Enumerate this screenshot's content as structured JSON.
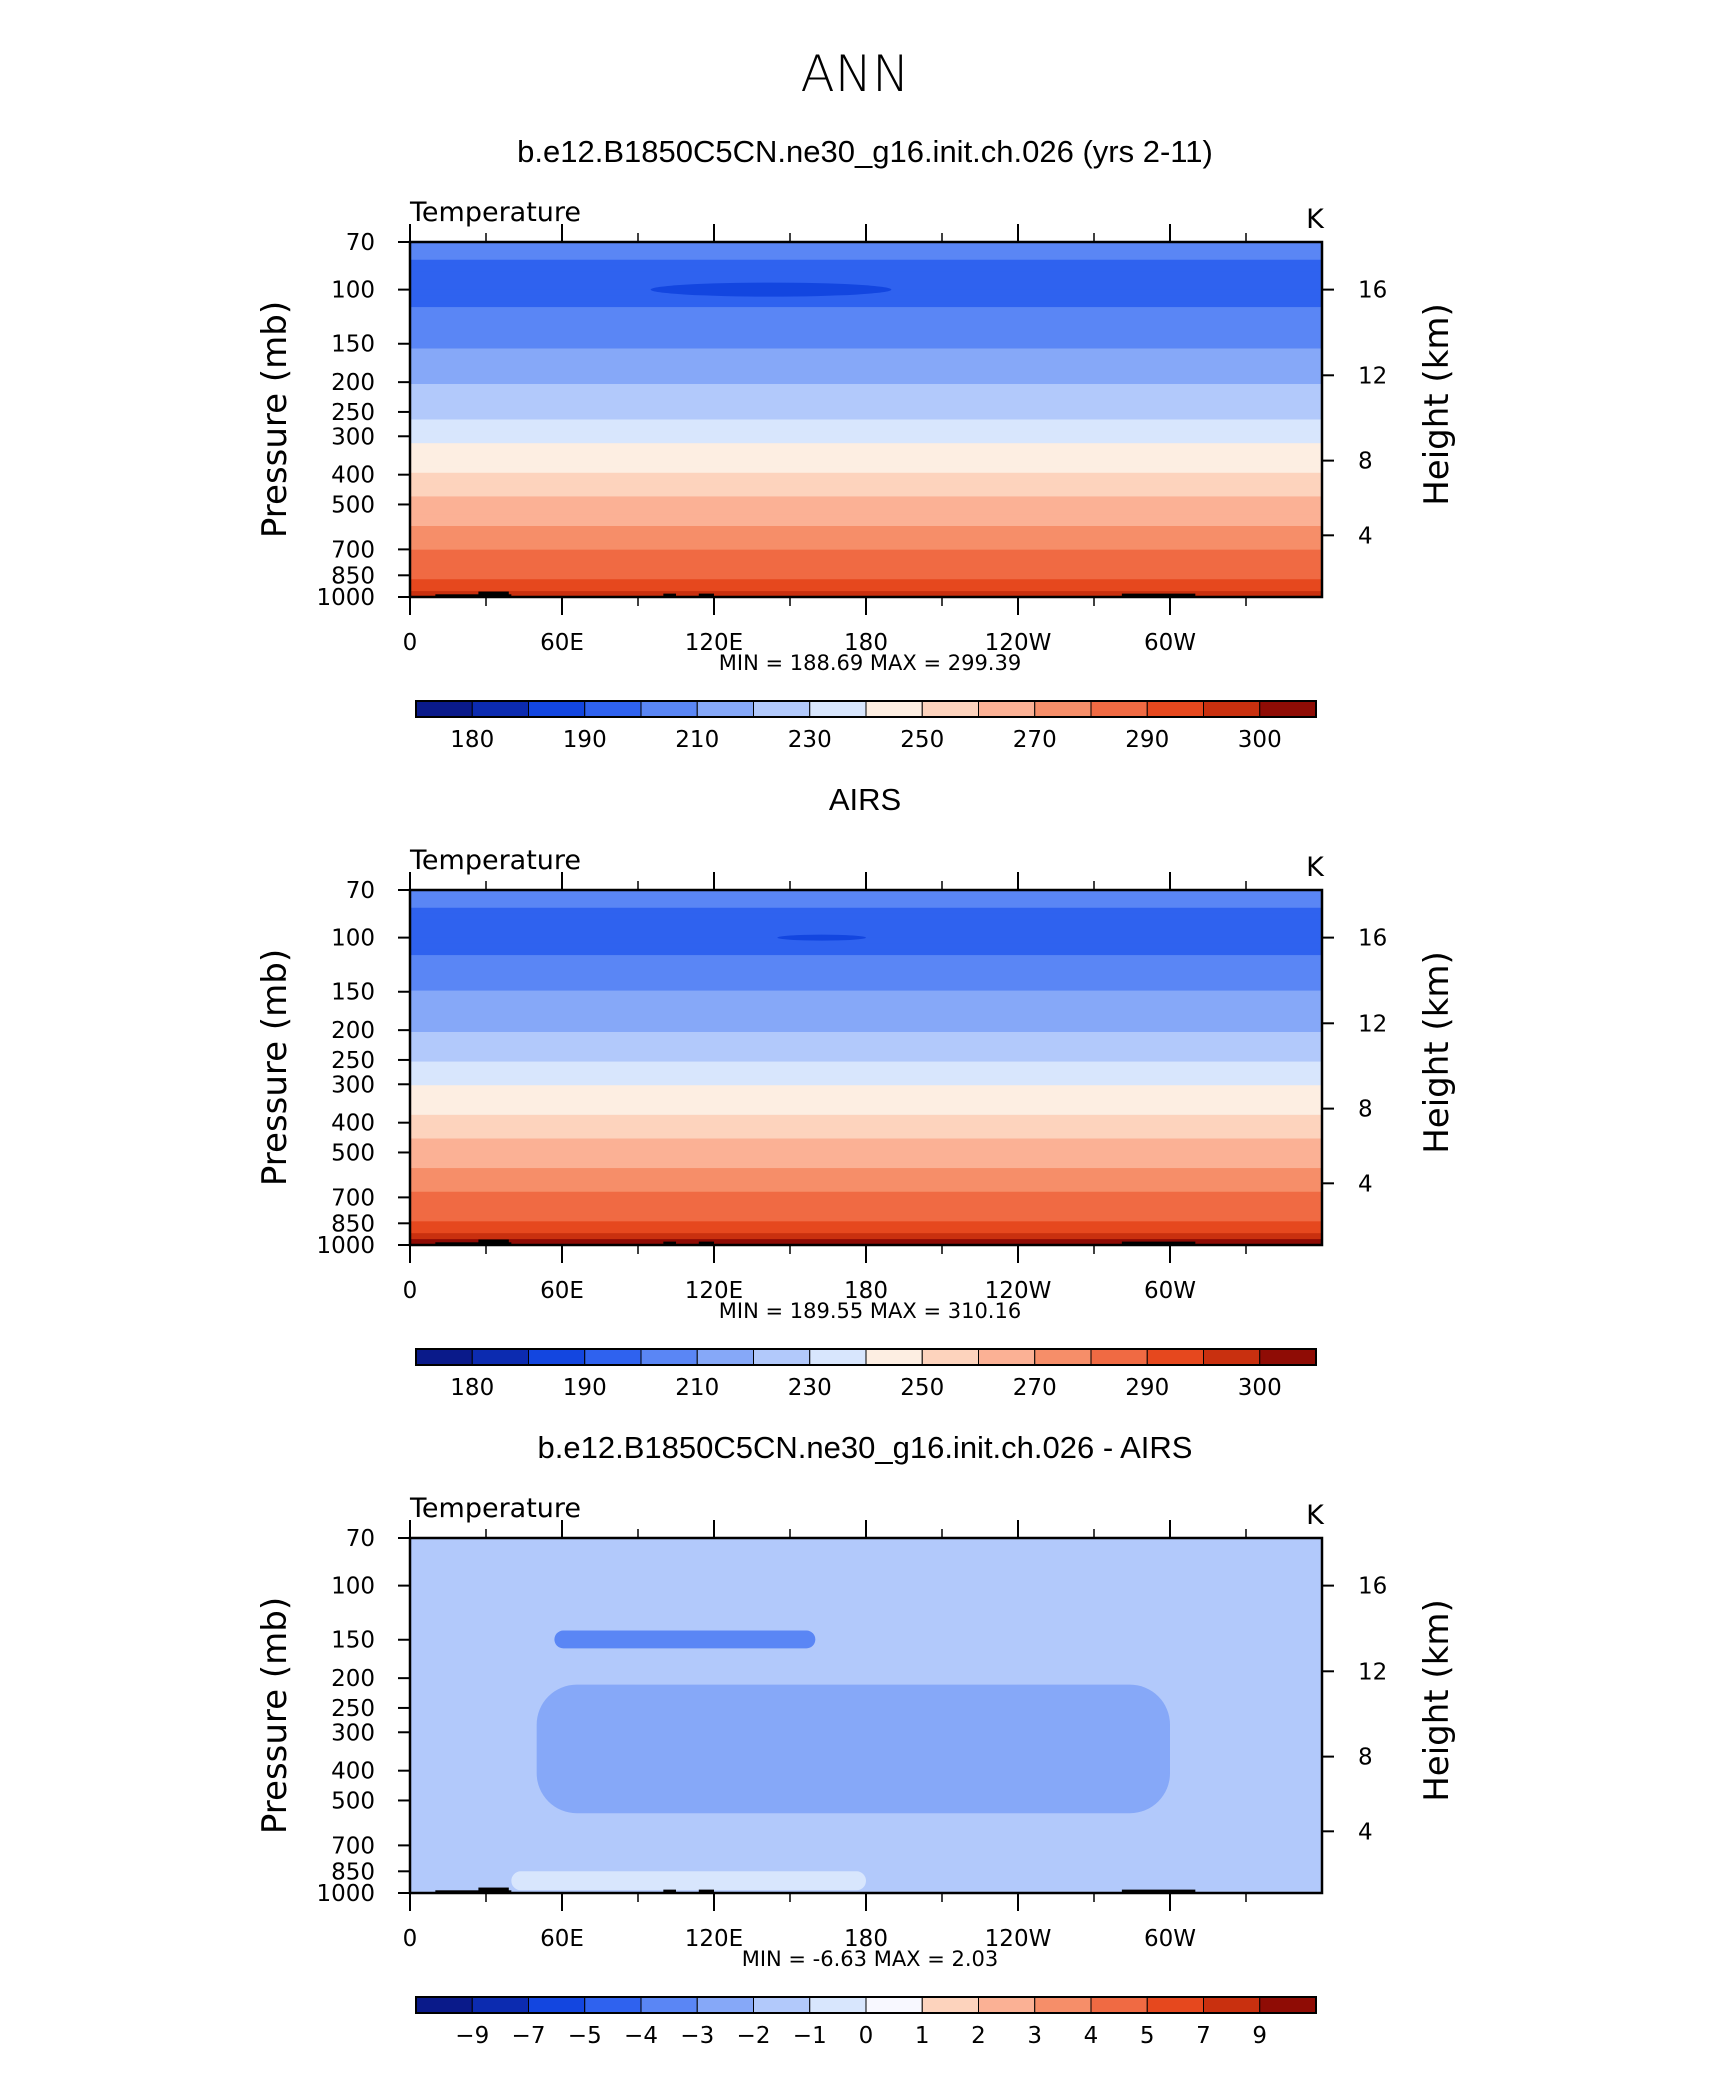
{
  "page": {
    "title": "ANN"
  },
  "colors": {
    "temperature_fill_levels": [
      "#0a1a8a",
      "#0c2bb0",
      "#1346e0",
      "#2f62ef",
      "#5a86f5",
      "#86a8f8",
      "#b2c9fb",
      "#d8e6fd",
      "#fdeee2",
      "#fdd3bd",
      "#fbb195",
      "#f68e69",
      "#f06a43",
      "#e6481e",
      "#c9300f",
      "#8f0c05"
    ],
    "difference_fill_levels": [
      "#0a1a8a",
      "#0c2bb0",
      "#1346e0",
      "#2f62ef",
      "#5a86f5",
      "#86a8f8",
      "#b2c9fb",
      "#d8e6fd",
      "#f8f8ff",
      "#fdd3bd",
      "#fbb195",
      "#f68e69",
      "#f06a43",
      "#e6481e",
      "#c9300f",
      "#8f0c05"
    ],
    "topography": "#000000"
  },
  "chart_data": [
    {
      "type": "heatmap",
      "title": "b.e12.B1850C5CN.ne30_g16.init.ch.026 (yrs 2-11)",
      "left_label": "Temperature",
      "right_label": "K",
      "ylabel": "Pressure (mb)",
      "ylabel_right": "Height (km)",
      "y_scale": "log",
      "ylim": [
        1000,
        70
      ],
      "yticks": [
        70,
        100,
        150,
        200,
        250,
        300,
        400,
        500,
        700,
        850,
        1000
      ],
      "yticks_right": [
        16,
        12,
        8,
        4
      ],
      "x_ticks": [
        "0",
        "60E",
        "120E",
        "180",
        "120W",
        "60W"
      ],
      "xlim_deg": [
        0,
        360
      ],
      "min_max_text": "MIN =  188.69   MAX =  299.39",
      "colorbar_labels": [
        "180",
        "190",
        "210",
        "230",
        "250",
        "270",
        "290",
        "300"
      ],
      "colorbar_n_boxes": 16,
      "temperature_vs_pressure": {
        "levels": [
          70,
          100,
          150,
          200,
          250,
          300,
          400,
          500,
          700,
          850,
          1000
        ],
        "values": [
          203,
          195,
          209,
          219,
          228,
          237,
          251,
          263,
          279,
          288,
          297
        ]
      },
      "cold_core": {
        "pressure": 100,
        "lon_range": [
          95,
          190
        ],
        "value": 188.69
      }
    },
    {
      "type": "heatmap",
      "title": "AIRS",
      "left_label": "Temperature",
      "right_label": "K",
      "ylabel": "Pressure (mb)",
      "ylabel_right": "Height (km)",
      "y_scale": "log",
      "ylim": [
        1000,
        70
      ],
      "yticks": [
        70,
        100,
        150,
        200,
        250,
        300,
        400,
        500,
        700,
        850,
        1000
      ],
      "yticks_right": [
        16,
        12,
        8,
        4
      ],
      "x_ticks": [
        "0",
        "60E",
        "120E",
        "180",
        "120W",
        "60W"
      ],
      "xlim_deg": [
        0,
        360
      ],
      "min_max_text": "MIN =  189.55   MAX =  310.16",
      "colorbar_labels": [
        "180",
        "190",
        "210",
        "230",
        "250",
        "270",
        "290",
        "300"
      ],
      "colorbar_n_boxes": 16,
      "temperature_vs_pressure": {
        "levels": [
          70,
          100,
          150,
          200,
          250,
          300,
          400,
          500,
          700,
          850,
          1000
        ],
        "values": [
          203,
          195,
          210,
          220,
          229,
          239,
          253,
          265,
          281,
          291,
          303
        ]
      },
      "cold_core": {
        "pressure": 100,
        "lon_range": [
          145,
          180
        ],
        "value": 189.55
      }
    },
    {
      "type": "heatmap",
      "title": "b.e12.B1850C5CN.ne30_g16.init.ch.026 - AIRS",
      "left_label": "Temperature",
      "right_label": "K",
      "ylabel": "Pressure (mb)",
      "ylabel_right": "Height (km)",
      "y_scale": "log",
      "ylim": [
        1000,
        70
      ],
      "yticks": [
        70,
        100,
        150,
        200,
        250,
        300,
        400,
        500,
        700,
        850,
        1000
      ],
      "yticks_right": [
        16,
        12,
        8,
        4
      ],
      "x_ticks": [
        "0",
        "60E",
        "120E",
        "180",
        "120W",
        "60W"
      ],
      "xlim_deg": [
        0,
        360
      ],
      "min_max_text": "MIN =   -6.63   MAX =     2.03",
      "colorbar_labels": [
        "-9",
        "-7",
        "-5",
        "-4",
        "-3",
        "-2",
        "-1",
        "0",
        "1",
        "2",
        "3",
        "4",
        "5",
        "7",
        "9"
      ],
      "colorbar_n_boxes": 16,
      "difference_regions": [
        {
          "value_range": [
            -2,
            -1
          ],
          "pressure_range": [
            110,
            95
          ],
          "lon_range": [
            30,
            70
          ]
        },
        {
          "value_range": [
            -4,
            -3
          ],
          "pressure_range": [
            160,
            140
          ],
          "lon_range": [
            57,
            160
          ]
        },
        {
          "value_range": [
            -2,
            -1
          ],
          "pressure_range": [
            70,
            1000
          ],
          "lon_range": [
            0,
            360
          ]
        },
        {
          "value_range": [
            -3,
            -2
          ],
          "pressure_range": [
            210,
            550
          ],
          "lon_range": [
            50,
            300
          ]
        },
        {
          "value_range": [
            -1,
            0
          ],
          "pressure_range": [
            850,
            980
          ],
          "lon_range": [
            40,
            180
          ]
        }
      ]
    }
  ]
}
